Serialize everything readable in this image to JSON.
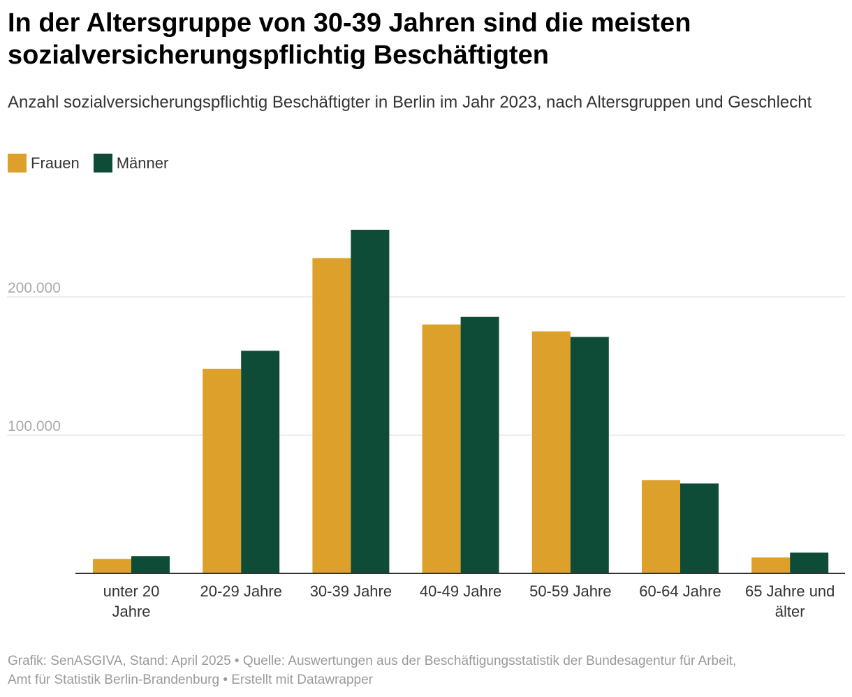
{
  "title": "In der Altersgruppe von 30-39 Jahren sind die meisten sozialversicherungspflichtig Beschäftigten",
  "subtitle": "Anzahl sozialversicherungspflichtig Beschäftigter in Berlin im Jahr 2023, nach Altersgruppen und Geschlecht",
  "footer": {
    "line1": "Grafik: SenASGIVA, Stand: April 2025 • Quelle: Auswertungen aus der Beschäftigungsstatistik der Bundesagentur für Arbeit,",
    "line2": "Amt für Statistik Berlin-Brandenburg • Erstellt mit Datawrapper"
  },
  "chart_data": {
    "type": "bar",
    "categories": [
      [
        "unter 20",
        "Jahre"
      ],
      [
        "20-29 Jahre"
      ],
      [
        "30-39 Jahre"
      ],
      [
        "40-49 Jahre"
      ],
      [
        "50-59 Jahre"
      ],
      [
        "60-64 Jahre"
      ],
      [
        "65 Jahre und",
        "älter"
      ]
    ],
    "series": [
      {
        "name": "Frauen",
        "color": "#dca02b",
        "values": [
          10500,
          148000,
          228000,
          180000,
          175000,
          67500,
          11500
        ]
      },
      {
        "name": "Männer",
        "color": "#0f4c38",
        "values": [
          12500,
          161000,
          248500,
          185500,
          171000,
          65000,
          15000
        ]
      }
    ],
    "yticks": [
      {
        "value": 100000,
        "label": "100.000"
      },
      {
        "value": 200000,
        "label": "200.000"
      }
    ],
    "ylim": [
      0,
      250000
    ],
    "grid": true,
    "legend_position": "top-left",
    "xlabel": "",
    "ylabel": ""
  }
}
